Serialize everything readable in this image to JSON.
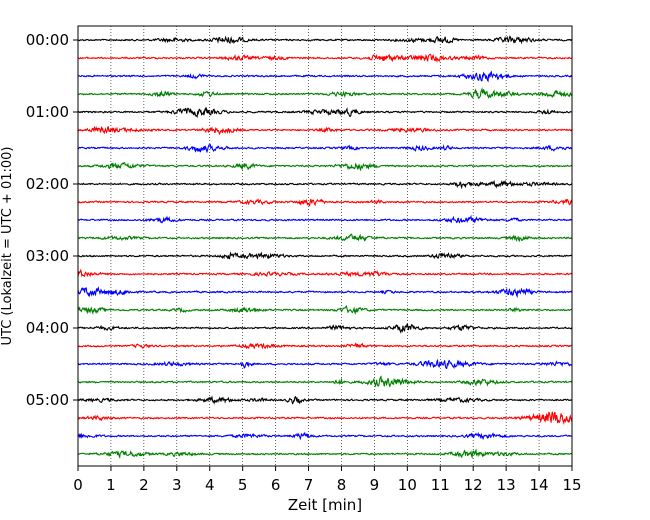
{
  "chart_data": {
    "type": "line",
    "title": "",
    "xlabel": "Zeit  [min]",
    "ylabel": "UTC (Lokalzeit = UTC + 01:00)",
    "xlim": [
      0,
      15
    ],
    "x_ticks": [
      "0",
      "1",
      "2",
      "3",
      "4",
      "5",
      "6",
      "7",
      "8",
      "9",
      "10",
      "11",
      "12",
      "13",
      "14",
      "15"
    ],
    "y_ticks": [
      "00:00",
      "01:00",
      "02:00",
      "03:00",
      "04:00",
      "05:00"
    ],
    "grid": "vertical dotted",
    "trace_interval_minutes": 15,
    "trace_count": 24,
    "trace_colors": [
      "#000000",
      "#ff0000",
      "#0000ff",
      "#008000"
    ],
    "series_description": "24 helicorder traces, each 15 minutes of seismic signal starting at 00:00, 00:15, ... 05:45 UTC"
  }
}
